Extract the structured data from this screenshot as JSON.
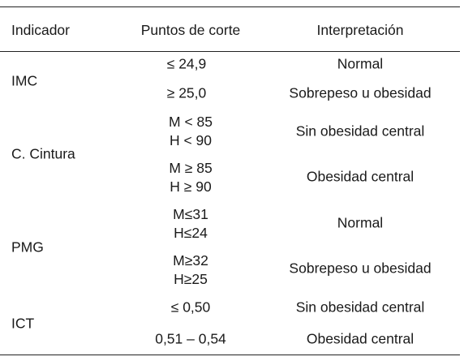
{
  "table": {
    "headers": {
      "indicador": "Indicador",
      "puntos": "Puntos de corte",
      "interpretacion": "Interpretación"
    },
    "groups": [
      {
        "indicador": "IMC",
        "rows": [
          {
            "puntos": [
              "≤ 24,9"
            ],
            "interpretacion": "Normal"
          },
          {
            "puntos": [
              "≥ 25,0"
            ],
            "interpretacion": "Sobrepeso u obesidad"
          }
        ]
      },
      {
        "indicador": "C. Cintura",
        "rows": [
          {
            "puntos": [
              "M < 85",
              "H < 90"
            ],
            "interpretacion": "Sin obesidad central"
          },
          {
            "puntos": [
              "M ≥ 85",
              "H ≥ 90"
            ],
            "interpretacion": "Obesidad central"
          }
        ]
      },
      {
        "indicador": "PMG",
        "rows": [
          {
            "puntos": [
              "M≤31",
              "H≤24"
            ],
            "interpretacion": "Normal"
          },
          {
            "puntos": [
              "M≥32",
              "H≥25"
            ],
            "interpretacion": "Sobrepeso u obesidad"
          }
        ]
      },
      {
        "indicador": "ICT",
        "rows": [
          {
            "puntos": [
              "≤ 0,50"
            ],
            "interpretacion": "Sin obesidad central"
          },
          {
            "puntos": [
              "0,51 – 0,54"
            ],
            "interpretacion": "Obesidad central"
          }
        ]
      }
    ]
  }
}
